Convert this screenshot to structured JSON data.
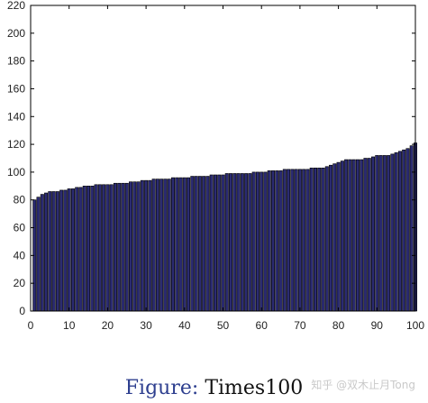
{
  "chart_data": {
    "type": "bar",
    "title": "",
    "xlabel": "",
    "ylabel": "",
    "xlim": [
      0,
      100
    ],
    "ylim": [
      0,
      220
    ],
    "xticks": [
      0,
      10,
      20,
      30,
      40,
      50,
      60,
      70,
      80,
      90,
      100
    ],
    "yticks": [
      0,
      20,
      40,
      60,
      80,
      100,
      120,
      140,
      160,
      180,
      200,
      220
    ],
    "grid": false,
    "bar_color": "#2b2b72",
    "x": [
      1,
      2,
      3,
      4,
      5,
      6,
      7,
      8,
      9,
      10,
      11,
      12,
      13,
      14,
      15,
      16,
      17,
      18,
      19,
      20,
      21,
      22,
      23,
      24,
      25,
      26,
      27,
      28,
      29,
      30,
      31,
      32,
      33,
      34,
      35,
      36,
      37,
      38,
      39,
      40,
      41,
      42,
      43,
      44,
      45,
      46,
      47,
      48,
      49,
      50,
      51,
      52,
      53,
      54,
      55,
      56,
      57,
      58,
      59,
      60,
      61,
      62,
      63,
      64,
      65,
      66,
      67,
      68,
      69,
      70,
      71,
      72,
      73,
      74,
      75,
      76,
      77,
      78,
      79,
      80,
      81,
      82,
      83,
      84,
      85,
      86,
      87,
      88,
      89,
      90,
      91,
      92,
      93,
      94,
      95,
      96,
      97,
      98,
      99,
      100
    ],
    "values": [
      80,
      82,
      84,
      85,
      86,
      86,
      86,
      87,
      87,
      88,
      88,
      89,
      89,
      90,
      90,
      90,
      91,
      91,
      91,
      91,
      91,
      92,
      92,
      92,
      92,
      93,
      93,
      93,
      94,
      94,
      94,
      95,
      95,
      95,
      95,
      95,
      96,
      96,
      96,
      96,
      96,
      97,
      97,
      97,
      97,
      97,
      98,
      98,
      98,
      98,
      99,
      99,
      99,
      99,
      99,
      99,
      99,
      100,
      100,
      100,
      100,
      101,
      101,
      101,
      101,
      102,
      102,
      102,
      102,
      102,
      102,
      102,
      103,
      103,
      103,
      103,
      104,
      105,
      106,
      107,
      108,
      109,
      109,
      109,
      109,
      109,
      110,
      110,
      111,
      112,
      112,
      112,
      112,
      113,
      114,
      115,
      116,
      117,
      119,
      121
    ]
  },
  "caption": {
    "label": "Figure:",
    "text": "Times100"
  },
  "watermark": "知乎 @双木止月Tong"
}
